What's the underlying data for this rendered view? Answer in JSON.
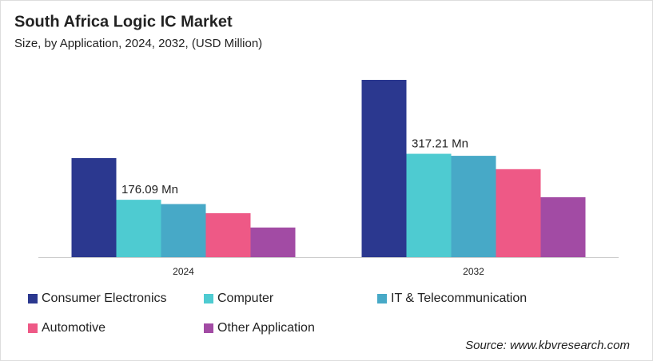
{
  "chart_data": {
    "type": "bar",
    "title": "South Africa Logic IC Market",
    "subtitle": "Size, by Application, 2024, 2032, (USD Million)",
    "categories": [
      "2024",
      "2032"
    ],
    "series": [
      {
        "name": "Consumer Electronics",
        "color": "#2b388f",
        "values": [
          304,
          544
        ]
      },
      {
        "name": "Computer",
        "color": "#4ecbd1",
        "values": [
          176.09,
          317.21
        ],
        "value_labels": [
          "176.09 Mn",
          "317.21 Mn"
        ]
      },
      {
        "name": "IT & Telecommunication",
        "color": "#47a9c7",
        "values": [
          163,
          311
        ]
      },
      {
        "name": "Automotive",
        "color": "#ee5986",
        "values": [
          135,
          270
        ]
      },
      {
        "name": "Other Application",
        "color": "#a24ba4",
        "values": [
          91,
          184
        ]
      }
    ],
    "source": "Source: www.kbvresearch.com"
  }
}
